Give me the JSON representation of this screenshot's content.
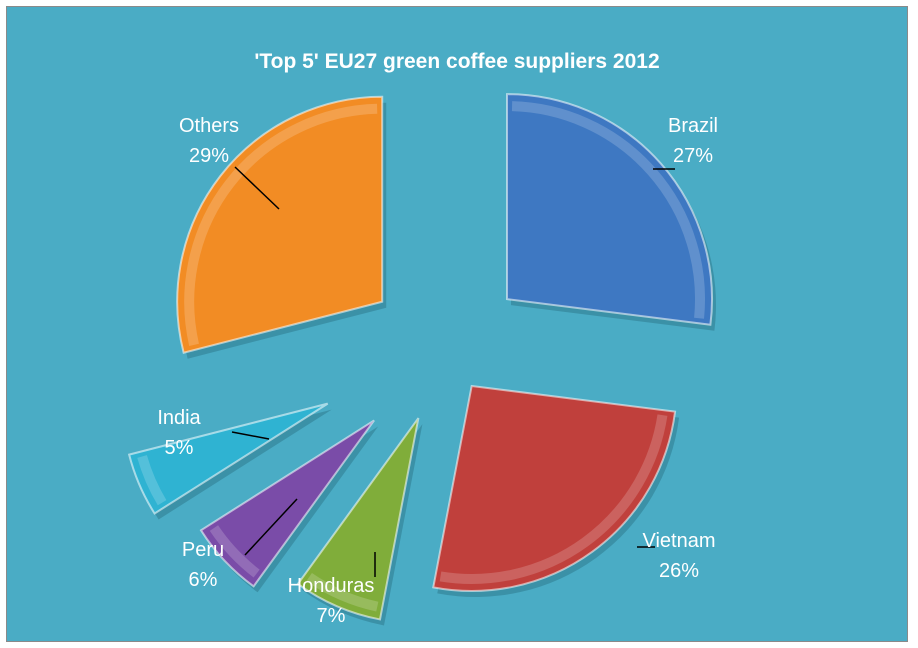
{
  "chart_data": {
    "type": "pie",
    "title": "'Top 5' EU27 green coffee suppliers 2012",
    "exploded": true,
    "style": "3d-bevel",
    "slices": [
      {
        "label": "Brazil",
        "percent_label": "27%",
        "value": 27,
        "color": "#3e78c2"
      },
      {
        "label": "Vietnam",
        "percent_label": "26%",
        "value": 26,
        "color": "#c0403c"
      },
      {
        "label": "Honduras",
        "percent_label": "7%",
        "value": 7,
        "color": "#80ad3a"
      },
      {
        "label": "Peru",
        "percent_label": "6%",
        "value": 6,
        "color": "#7a4ca8"
      },
      {
        "label": "India",
        "percent_label": "5%",
        "value": 5,
        "color": "#2fb3d2"
      },
      {
        "label": "Others",
        "percent_label": "29%",
        "value": 29,
        "color": "#f28c24"
      }
    ]
  }
}
